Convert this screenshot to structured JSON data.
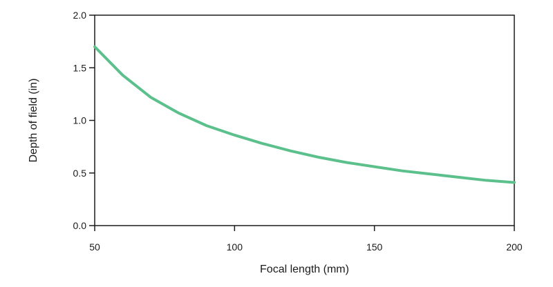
{
  "chart_data": {
    "type": "line",
    "title": "",
    "xlabel": "Focal length (mm)",
    "ylabel": "Depth of field (in)",
    "xlim": [
      50,
      200
    ],
    "ylim": [
      0,
      2.0
    ],
    "xticks": [
      50,
      100,
      150,
      200
    ],
    "xtick_labels": [
      "50",
      "100",
      "150",
      "200"
    ],
    "yticks": [
      0,
      0.5,
      1.0,
      1.5,
      2.0
    ],
    "ytick_labels": [
      "0.0",
      "0.5",
      "1.0",
      "1.5",
      "2.0"
    ],
    "grid": false,
    "series": [
      {
        "color": "#5cc08c",
        "x": [
          50,
          60,
          70,
          80,
          90,
          100,
          110,
          120,
          130,
          140,
          150,
          160,
          170,
          180,
          190,
          200
        ],
        "y": [
          1.7,
          1.43,
          1.22,
          1.07,
          0.95,
          0.86,
          0.78,
          0.71,
          0.65,
          0.6,
          0.56,
          0.52,
          0.49,
          0.46,
          0.43,
          0.41
        ]
      }
    ]
  }
}
